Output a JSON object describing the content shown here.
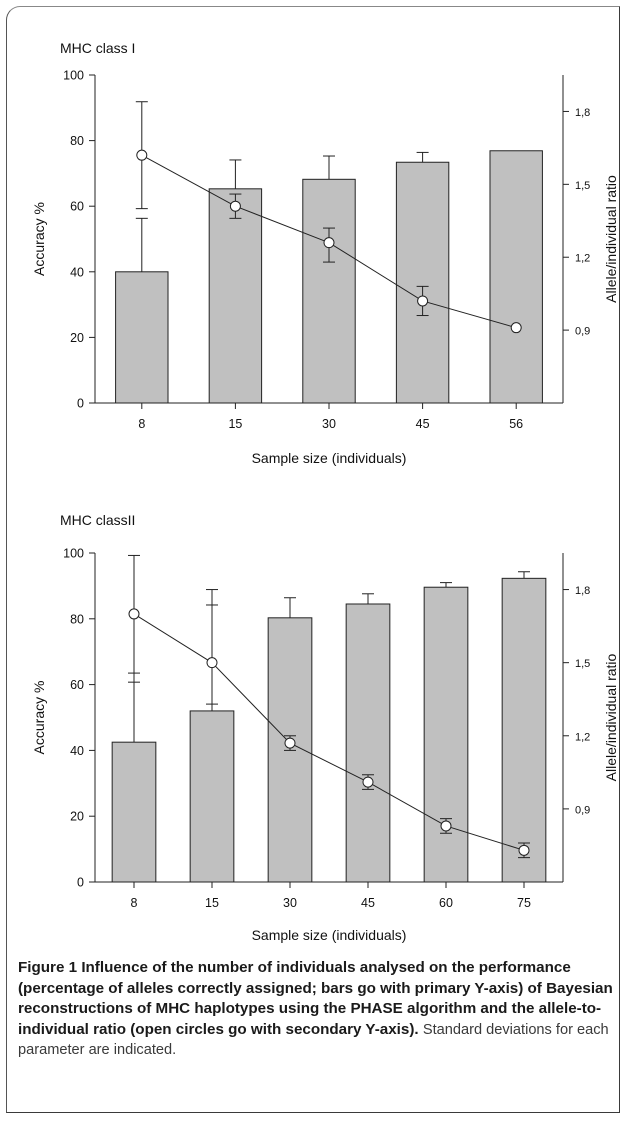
{
  "chart_data": [
    {
      "type": "bar",
      "title": "MHC class I",
      "categories": [
        "8",
        "15",
        "30",
        "45",
        "56"
      ],
      "xlabel": "Sample size (individuals)",
      "ylabel": "Accuracy %",
      "y2label": "Allele/individual ratio",
      "ylim": [
        0,
        100
      ],
      "y2lim": [
        0.6,
        1.95
      ],
      "yticks": [
        0,
        20,
        40,
        60,
        80,
        100
      ],
      "y2ticks": [
        0.9,
        1.2,
        1.5,
        1.8
      ],
      "y2tick_labels": [
        "0,9",
        "1,2",
        "1,5",
        "1,8"
      ],
      "bar_color": "#c0c0c0",
      "series": [
        {
          "axis": "primary",
          "kind": "bar",
          "values": [
            40,
            65.3,
            68.2,
            73.4,
            76.9
          ],
          "err_upper": [
            56.3,
            74.1,
            75.3,
            76.4,
            null
          ],
          "err_lower": [
            null,
            null,
            null,
            null,
            null
          ]
        },
        {
          "axis": "secondary",
          "kind": "line",
          "marker": "open-circle",
          "values": [
            1.62,
            1.41,
            1.26,
            1.02,
            0.91
          ],
          "err_upper": [
            1.84,
            1.46,
            1.32,
            1.08,
            null
          ],
          "err_lower": [
            1.4,
            1.36,
            1.18,
            0.96,
            null
          ]
        }
      ]
    },
    {
      "type": "bar",
      "title": "MHC classII",
      "categories": [
        "8",
        "15",
        "30",
        "45",
        "60",
        "75"
      ],
      "xlabel": "Sample size (individuals)",
      "ylabel": "Accuracy %",
      "y2label": "Allele/individual ratio",
      "ylim": [
        0,
        100
      ],
      "y2lim": [
        0.6,
        1.95
      ],
      "yticks": [
        0,
        20,
        40,
        60,
        80,
        100
      ],
      "y2ticks": [
        0.9,
        1.2,
        1.5,
        1.8
      ],
      "y2tick_labels": [
        "0,9",
        "1,2",
        "1,5",
        "1,8"
      ],
      "bar_color": "#c0c0c0",
      "series": [
        {
          "axis": "primary",
          "kind": "bar",
          "values": [
            42.5,
            52,
            80.3,
            84.5,
            89.6,
            92.3
          ],
          "err_upper": [
            63.5,
            84.2,
            86.4,
            87.6,
            91,
            94.3
          ],
          "err_lower": [
            null,
            null,
            null,
            null,
            null,
            null
          ]
        },
        {
          "axis": "secondary",
          "kind": "line",
          "marker": "open-circle",
          "values": [
            1.7,
            1.5,
            1.17,
            1.01,
            0.83,
            0.73
          ],
          "err_upper": [
            1.94,
            1.8,
            1.2,
            1.04,
            0.86,
            0.76
          ],
          "err_lower": [
            1.42,
            1.33,
            1.14,
            0.98,
            0.8,
            0.7
          ]
        }
      ]
    }
  ],
  "caption": {
    "label": "Figure 1",
    "text": "Influence of the number of individuals analysed on the performance (percentage of alleles correctly assigned; bars go with primary Y-axis) of Bayesian reconstructions of MHC haplotypes using the PHASE algorithm and the allele-to-individual ratio (open circles go with secondary Y-axis).",
    "note": "Standard deviations for each parameter are indicated."
  }
}
